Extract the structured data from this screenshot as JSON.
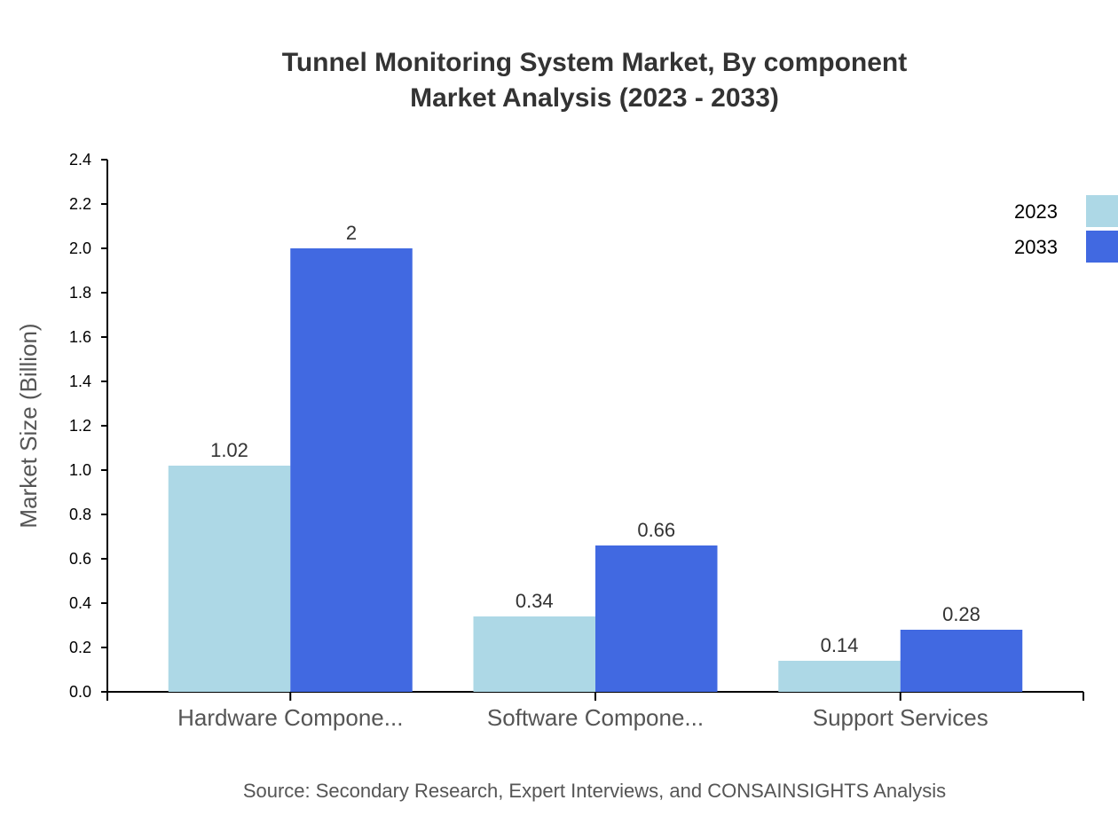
{
  "chart_data": {
    "type": "bar",
    "title": "Tunnel Monitoring System Market, By component",
    "subtitle": "Market Analysis (2023 - 2033)",
    "ylabel": "Market Size (Billion)",
    "xlabel": "",
    "categories": [
      "Hardware Compone...",
      "Software Compone...",
      "Support Services"
    ],
    "series": [
      {
        "name": "2023",
        "color": "#ADD8E6",
        "values": [
          1.02,
          0.34,
          0.14
        ],
        "labels": [
          "1.02",
          "0.34",
          "0.14"
        ]
      },
      {
        "name": "2033",
        "color": "#4169E1",
        "values": [
          2,
          0.66,
          0.28
        ],
        "labels": [
          "2",
          "0.66",
          "0.28"
        ]
      }
    ],
    "ylim": [
      0,
      2.4
    ],
    "yticks": [
      "0.0",
      "0.2",
      "0.4",
      "0.6",
      "0.8",
      "1.0",
      "1.2",
      "1.4",
      "1.6",
      "1.8",
      "2.0",
      "2.2",
      "2.4"
    ],
    "grid": false,
    "legend_position": "top-right",
    "source": "Source: Secondary Research, Expert Interviews, and CONSAINSIGHTS Analysis"
  }
}
